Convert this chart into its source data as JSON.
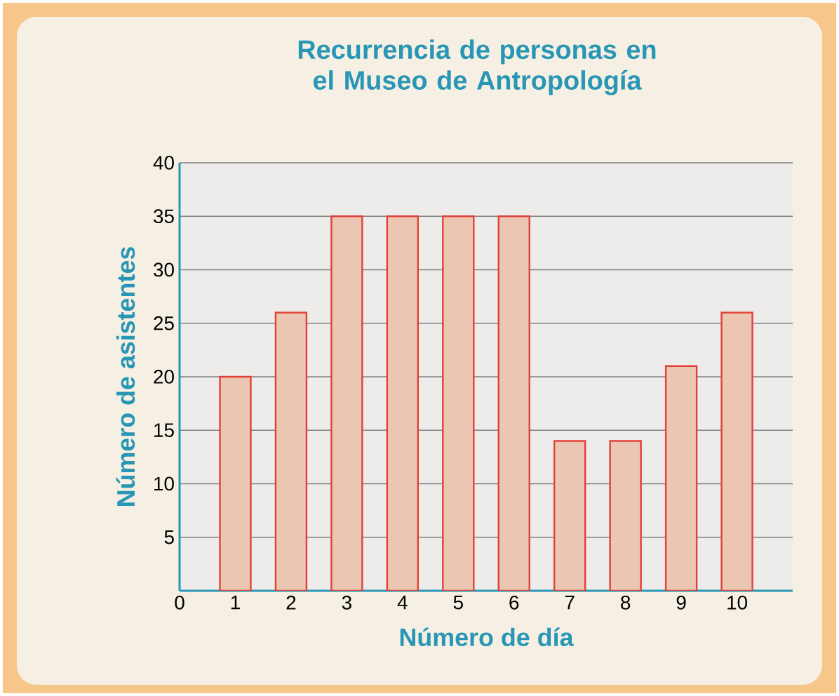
{
  "chart_data": {
    "type": "bar",
    "title": "Recurrencia de personas en el Museo de Antropología",
    "xlabel": "Número de día",
    "ylabel": "Número de asistentes",
    "x": [
      1,
      2,
      3,
      4,
      5,
      6,
      7,
      8,
      9,
      10
    ],
    "values": [
      20,
      26,
      35,
      35,
      35,
      35,
      14,
      14,
      21,
      26
    ],
    "color": "#ebc6b2",
    "xlim": [
      0,
      11
    ],
    "xticks": [
      0,
      1,
      2,
      3,
      4,
      5,
      6,
      7,
      8,
      9,
      10
    ],
    "ylim": [
      0,
      40
    ],
    "yticks": [
      5,
      10,
      15,
      20,
      25,
      30,
      35,
      40
    ],
    "grid": "y"
  }
}
